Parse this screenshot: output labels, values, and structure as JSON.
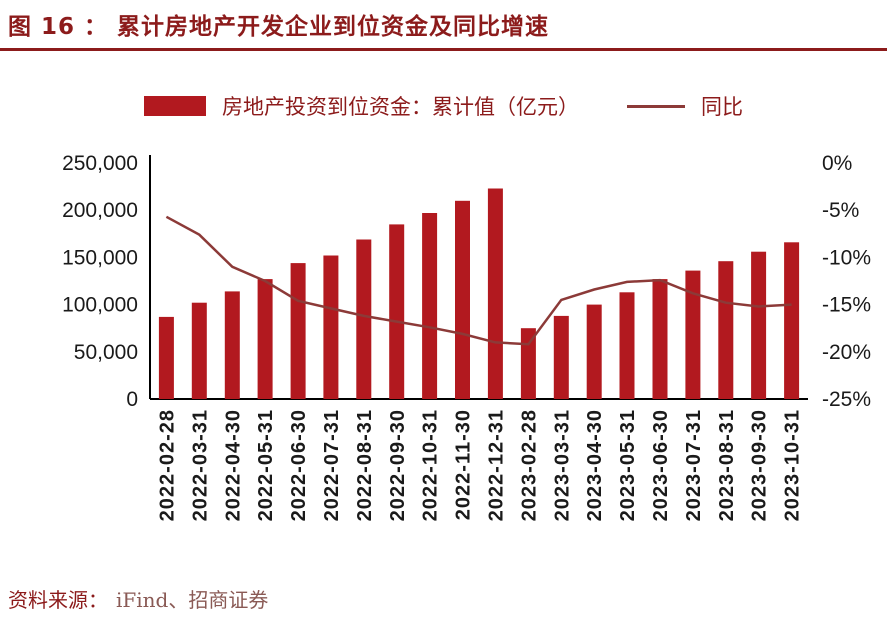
{
  "title": "图 16 ：  累计房地产开发企业到位资金及同比增速",
  "legend": {
    "bar_label": "房地产投资到位资金：累计值（亿元）",
    "line_label": "同比"
  },
  "source": {
    "label": "资料来源：",
    "value": "iFind、招商证券"
  },
  "colors": {
    "bar": "#B2191F",
    "line": "#8C3A38",
    "accent_text": "#8C1B1B",
    "axis": "#000000"
  },
  "chart_data": {
    "type": "bar",
    "subtype": "bar+line combo, dual axis",
    "title": "累计房地产开发企业到位资金及同比增速",
    "grid": false,
    "legend_position": "top",
    "categories": [
      "2022-02-28",
      "2022-03-31",
      "2022-04-30",
      "2022-05-31",
      "2022-06-30",
      "2022-07-31",
      "2022-08-31",
      "2022-09-30",
      "2022-10-31",
      "2022-11-30",
      "2022-12-31",
      "2023-02-28",
      "2023-03-31",
      "2023-04-30",
      "2023-05-31",
      "2023-06-30",
      "2023-07-31",
      "2023-08-31",
      "2023-09-30",
      "2023-10-31"
    ],
    "series": [
      {
        "name": "房地产投资到位资金：累计值（亿元）",
        "type": "bar",
        "axis": "left",
        "values": [
          87000,
          102000,
          114000,
          127000,
          144000,
          152000,
          169000,
          185000,
          197000,
          210000,
          223000,
          75000,
          88000,
          100000,
          113000,
          127000,
          136000,
          146000,
          156000,
          166000
        ]
      },
      {
        "name": "同比",
        "type": "line",
        "axis": "right",
        "values": [
          -5.7,
          -7.6,
          -11.0,
          -12.5,
          -14.6,
          -15.4,
          -16.2,
          -16.8,
          -17.4,
          -18.1,
          -19.0,
          -19.2,
          -14.5,
          -13.4,
          -12.6,
          -12.4,
          -13.8,
          -14.8,
          -15.2,
          -15.0
        ]
      }
    ],
    "left_axis": {
      "ticks": [
        0,
        50000,
        100000,
        150000,
        200000,
        250000
      ],
      "tick_labels": [
        "0",
        "50,000",
        "100,000",
        "150,000",
        "200,000",
        "250,000"
      ],
      "range": [
        0,
        250000
      ]
    },
    "right_axis": {
      "ticks": [
        0,
        -5,
        -10,
        -15,
        -20,
        -25
      ],
      "tick_labels": [
        "0%",
        "-5%",
        "-10%",
        "-15%",
        "-20%",
        "-25%"
      ],
      "range": [
        -25,
        0
      ]
    }
  }
}
